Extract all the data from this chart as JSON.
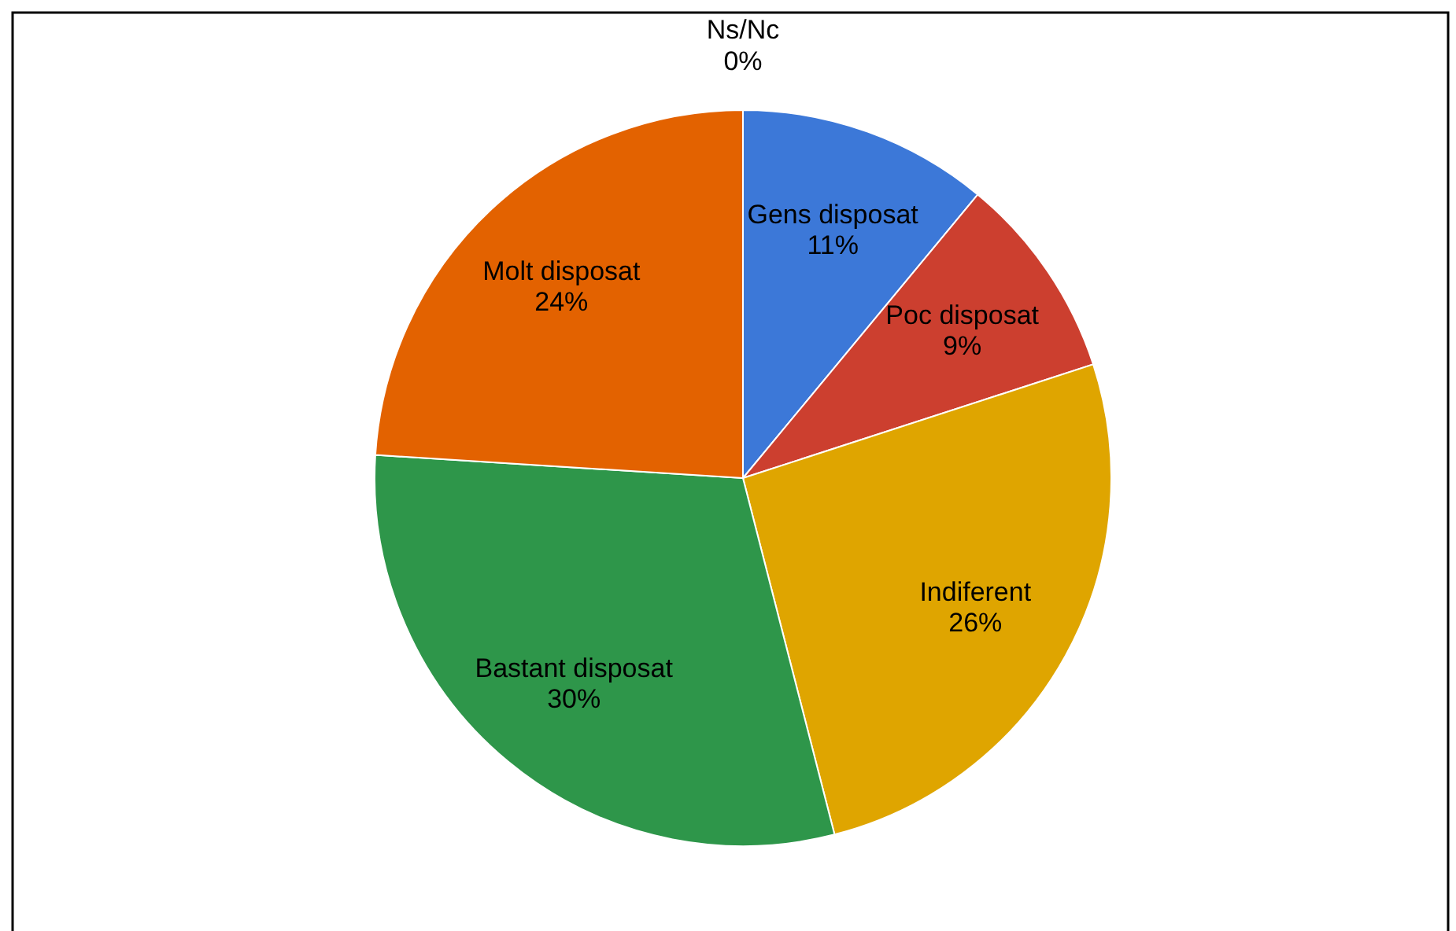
{
  "chart_data": {
    "type": "pie",
    "categories": [
      "Gens disposat",
      "Poc disposat",
      "Indiferent",
      "Bastant disposat",
      "Molt disposat",
      "Ns/Nc"
    ],
    "values": [
      11,
      9,
      26,
      30,
      24,
      0
    ],
    "value_labels": [
      "11%",
      "9%",
      "26%",
      "30%",
      "24%",
      "0%"
    ],
    "colors": [
      "#3c78d8",
      "#cc3f2f",
      "#dfa500",
      "#2e964a",
      "#e36200",
      null
    ]
  }
}
